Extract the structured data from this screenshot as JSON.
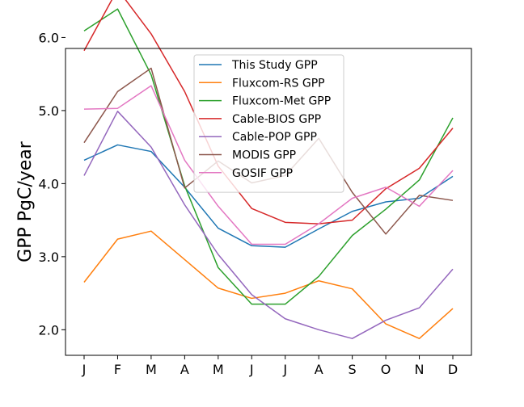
{
  "chart_data": {
    "type": "line",
    "title": "",
    "xlabel": "",
    "ylabel": "GPP PgC/year",
    "categories": [
      "J",
      "F",
      "M",
      "A",
      "M",
      "J",
      "J",
      "A",
      "S",
      "O",
      "N",
      "D"
    ],
    "ylim": [
      1.65,
      5.85
    ],
    "yticks": [
      2.0,
      3.0,
      4.0,
      5.0,
      6.0
    ],
    "ytick_labels": [
      "2.0",
      "3.0",
      "4.0",
      "5.0",
      "6.0"
    ],
    "grid": false,
    "legend_position": "upper-center",
    "series": [
      {
        "name": "This Study GPP",
        "color": "#1f77b4",
        "values": [
          4.32,
          4.53,
          4.44,
          3.95,
          3.39,
          3.15,
          3.13,
          3.38,
          3.62,
          3.75,
          3.8,
          4.1
        ]
      },
      {
        "name": "Fluxcom-RS GPP",
        "color": "#ff7f0e",
        "values": [
          2.65,
          3.24,
          3.35,
          2.96,
          2.57,
          2.43,
          2.5,
          2.67,
          2.56,
          2.08,
          1.88,
          2.29
        ]
      },
      {
        "name": "Fluxcom-Met GPP",
        "color": "#2ca02c",
        "values": [
          6.09,
          6.39,
          5.49,
          3.97,
          2.85,
          2.35,
          2.35,
          2.73,
          3.29,
          3.65,
          4.05,
          4.9
        ]
      },
      {
        "name": "Cable-BIOS GPP",
        "color": "#d62728",
        "values": [
          5.82,
          6.66,
          6.05,
          5.26,
          4.24,
          3.66,
          3.47,
          3.45,
          3.5,
          3.93,
          4.21,
          4.76
        ]
      },
      {
        "name": "Cable-POP GPP",
        "color": "#9467bd",
        "values": [
          4.11,
          4.99,
          4.5,
          3.71,
          3.03,
          2.48,
          2.15,
          2.0,
          1.88,
          2.13,
          2.3,
          2.83
        ]
      },
      {
        "name": "MODIS GPP",
        "color": "#8c564b",
        "values": [
          4.56,
          5.26,
          5.58,
          3.94,
          4.31,
          4.01,
          4.11,
          4.62,
          3.88,
          3.31,
          3.84,
          3.77
        ]
      },
      {
        "name": "GOSIF GPP",
        "color": "#e377c2",
        "values": [
          5.02,
          5.03,
          5.34,
          4.32,
          3.69,
          3.17,
          3.17,
          3.45,
          3.8,
          3.95,
          3.69,
          4.18
        ]
      }
    ]
  }
}
